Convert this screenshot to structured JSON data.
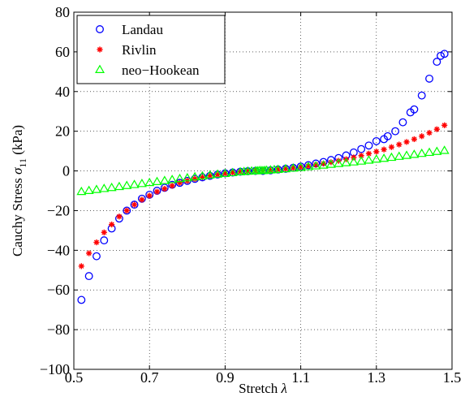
{
  "chart_data": {
    "type": "scatter",
    "title": "",
    "xlabel": "Stretch λ",
    "ylabel": "Cauchy Stress σ11 (kPa)",
    "ylabel_main": "Cauchy Stress ",
    "ylabel_sigma": "σ",
    "ylabel_sub": "11",
    "ylabel_unit": " (kPa)",
    "xlabel_main": "Stretch ",
    "xlabel_lambda": "λ",
    "xlim": [
      0.5,
      1.5
    ],
    "ylim": [
      -100,
      80
    ],
    "xticks": [
      0.5,
      0.7,
      0.9,
      1.1,
      1.3,
      1.5
    ],
    "yticks": [
      -100,
      -80,
      -60,
      -40,
      -20,
      0,
      20,
      40,
      60,
      80
    ],
    "xtick_labels": [
      "0.5",
      "0.7",
      "0.9",
      "1.1",
      "1.3",
      "1.5"
    ],
    "ytick_labels": [
      "−100",
      "−80",
      "−60",
      "−40",
      "−20",
      "0",
      "20",
      "40",
      "60",
      "80"
    ],
    "grid": "dotted",
    "legend_position": "top-left",
    "series": [
      {
        "name": "Landau",
        "marker": "circle",
        "color": "#0000ff",
        "x": [
          0.52,
          0.54,
          0.56,
          0.58,
          0.6,
          0.62,
          0.64,
          0.66,
          0.68,
          0.7,
          0.72,
          0.74,
          0.76,
          0.78,
          0.8,
          0.82,
          0.84,
          0.86,
          0.88,
          0.9,
          0.92,
          0.94,
          0.96,
          0.98,
          1.0,
          1.02,
          1.04,
          1.06,
          1.08,
          1.1,
          1.12,
          1.14,
          1.16,
          1.18,
          1.2,
          1.22,
          1.24,
          1.26,
          1.28,
          1.3,
          1.32,
          1.33,
          1.35,
          1.37,
          1.39,
          1.4,
          1.42,
          1.44,
          1.46,
          1.47,
          1.48
        ],
        "y": [
          -65,
          -53,
          -43,
          -35,
          -29,
          -24,
          -20,
          -17,
          -14,
          -12,
          -10,
          -8.5,
          -7,
          -6,
          -5,
          -4,
          -3.2,
          -2.5,
          -1.8,
          -1.2,
          -0.8,
          -0.4,
          -0.15,
          0,
          0,
          0.3,
          0.7,
          1.1,
          1.6,
          2.2,
          2.9,
          3.7,
          4.5,
          5.5,
          6.5,
          7.8,
          9.3,
          11,
          12.8,
          15,
          16,
          17.5,
          20,
          24.5,
          29.5,
          31,
          38,
          46.5,
          55,
          58,
          59
        ]
      },
      {
        "name": "Rivlin",
        "marker": "star",
        "color": "#ff0000",
        "x": [
          0.52,
          0.54,
          0.56,
          0.58,
          0.6,
          0.62,
          0.64,
          0.66,
          0.68,
          0.7,
          0.72,
          0.74,
          0.76,
          0.78,
          0.8,
          0.82,
          0.84,
          0.86,
          0.88,
          0.9,
          0.92,
          0.94,
          0.96,
          0.98,
          1.0,
          1.02,
          1.04,
          1.06,
          1.08,
          1.1,
          1.12,
          1.14,
          1.16,
          1.18,
          1.2,
          1.22,
          1.24,
          1.26,
          1.28,
          1.3,
          1.32,
          1.34,
          1.36,
          1.38,
          1.4,
          1.42,
          1.44,
          1.46,
          1.48
        ],
        "y": [
          -48,
          -41.5,
          -36,
          -31,
          -27,
          -23,
          -20,
          -17,
          -14.5,
          -12.5,
          -10.5,
          -9,
          -7.5,
          -6,
          -5,
          -4,
          -3.2,
          -2.5,
          -1.9,
          -1.3,
          -0.8,
          -0.4,
          -0.15,
          0,
          0,
          0.3,
          0.7,
          1.1,
          1.5,
          2,
          2.5,
          3.1,
          3.7,
          4.4,
          5.1,
          5.9,
          6.8,
          7.7,
          8.7,
          9.7,
          10.8,
          12,
          13.3,
          14.6,
          16,
          17.5,
          19.2,
          21,
          23
        ]
      },
      {
        "name": "neo−Hookean",
        "marker": "triangle",
        "color": "#00ff00",
        "x": [
          0.52,
          0.54,
          0.56,
          0.58,
          0.6,
          0.62,
          0.64,
          0.66,
          0.68,
          0.7,
          0.72,
          0.74,
          0.76,
          0.78,
          0.8,
          0.82,
          0.84,
          0.86,
          0.88,
          0.9,
          0.92,
          0.94,
          0.95,
          0.96,
          0.97,
          0.98,
          0.985,
          0.99,
          0.995,
          1.0,
          1.005,
          1.01,
          1.02,
          1.03,
          1.04,
          1.06,
          1.08,
          1.1,
          1.12,
          1.14,
          1.16,
          1.18,
          1.2,
          1.22,
          1.24,
          1.26,
          1.28,
          1.3,
          1.32,
          1.34,
          1.36,
          1.38,
          1.4,
          1.42,
          1.44,
          1.46,
          1.48
        ],
        "y": [
          -10.5,
          -10,
          -9.5,
          -9,
          -8.5,
          -8,
          -7.5,
          -7,
          -6.5,
          -6,
          -5.5,
          -5,
          -4.5,
          -4,
          -3.6,
          -3.1,
          -2.7,
          -2.2,
          -1.8,
          -1.4,
          -1,
          -0.6,
          -0.45,
          -0.3,
          -0.2,
          -0.1,
          -0.05,
          0,
          0.05,
          0,
          0.1,
          0.2,
          0.35,
          0.5,
          0.65,
          0.95,
          1.3,
          1.6,
          2,
          2.4,
          2.8,
          3.2,
          3.6,
          4,
          4.4,
          4.8,
          5.3,
          5.8,
          6.2,
          6.7,
          7.2,
          7.7,
          8.2,
          8.7,
          9.2,
          9.7,
          10.2
        ]
      }
    ]
  }
}
